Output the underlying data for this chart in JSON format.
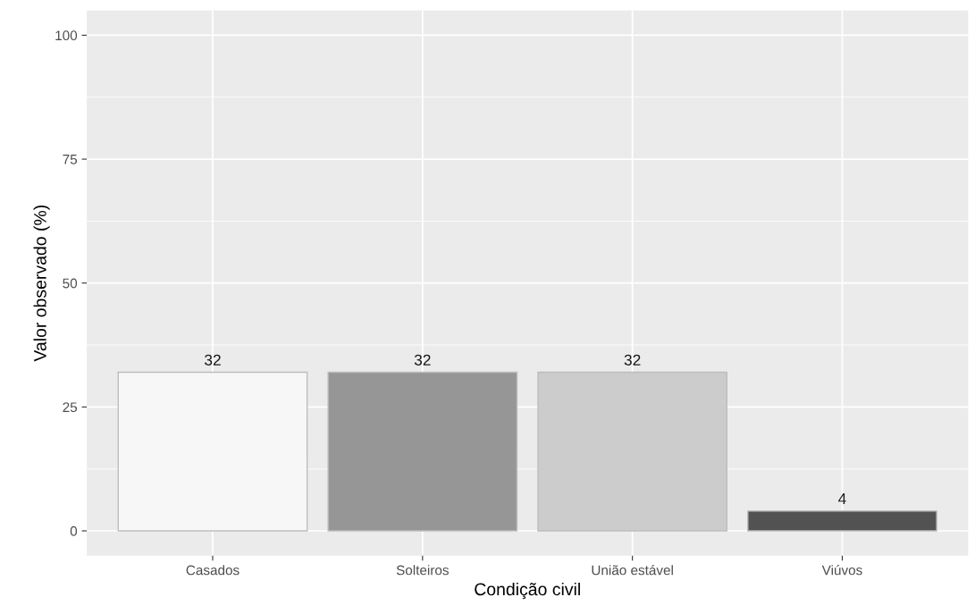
{
  "chart_data": {
    "type": "bar",
    "xlabel": "Condição civil",
    "ylabel": "Valor observado (%)",
    "categories": [
      "Casados",
      "Solteiros",
      "União estável",
      "Viúvos"
    ],
    "values": [
      32,
      32,
      32,
      4
    ],
    "colors": [
      "#f7f7f7",
      "#969696",
      "#cccccc",
      "#525252"
    ],
    "ylim": [
      -5,
      105
    ],
    "yticks": [
      0,
      25,
      50,
      75,
      100
    ],
    "grid": true,
    "data_labels": true,
    "legend": false
  }
}
